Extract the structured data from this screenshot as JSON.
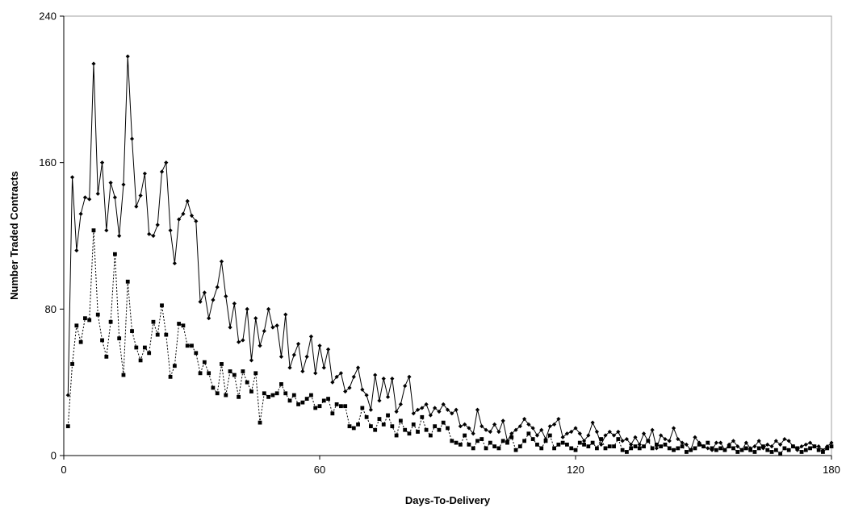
{
  "chart_data": {
    "type": "line",
    "title": "",
    "xlabel": "Days-To-Delivery",
    "ylabel": "Number Traded Contracts",
    "xlim": [
      0,
      180
    ],
    "ylim": [
      0,
      240
    ],
    "x_ticks": [
      "0",
      "60",
      "120",
      "180"
    ],
    "y_ticks": [
      "0",
      "80",
      "160",
      "240"
    ],
    "grid": false,
    "legend": "none",
    "series": [
      {
        "style": "solid",
        "marker": "diamond",
        "color": "#000000",
        "x": [
          1,
          2,
          3,
          4,
          5,
          6,
          7,
          8,
          9,
          10,
          11,
          12,
          13,
          14,
          15,
          16,
          17,
          18,
          19,
          20,
          21,
          22,
          23,
          24,
          25,
          26,
          27,
          28,
          29,
          30,
          31,
          32,
          33,
          34,
          35,
          36,
          37,
          38,
          39,
          40,
          41,
          42,
          43,
          44,
          45,
          46,
          47,
          48,
          49,
          50,
          51,
          52,
          53,
          54,
          55,
          56,
          57,
          58,
          59,
          60,
          61,
          62,
          63,
          64,
          65,
          66,
          67,
          68,
          69,
          70,
          71,
          72,
          73,
          74,
          75,
          76,
          77,
          78,
          79,
          80,
          81,
          82,
          83,
          84,
          85,
          86,
          87,
          88,
          89,
          90,
          91,
          92,
          93,
          94,
          95,
          96,
          97,
          98,
          99,
          100,
          101,
          102,
          103,
          104,
          105,
          106,
          107,
          108,
          109,
          110,
          111,
          112,
          113,
          114,
          115,
          116,
          117,
          118,
          119,
          120,
          121,
          122,
          123,
          124,
          125,
          126,
          127,
          128,
          129,
          130,
          131,
          132,
          133,
          134,
          135,
          136,
          137,
          138,
          139,
          140,
          141,
          142,
          143,
          144,
          145,
          146,
          147,
          148,
          149,
          150,
          151,
          152,
          153,
          154,
          155,
          156,
          157,
          158,
          159,
          160,
          161,
          162,
          163,
          164,
          165,
          166,
          167,
          168,
          169,
          170,
          171,
          172,
          173,
          174,
          175,
          176,
          177,
          178,
          179,
          180
        ],
        "values": [
          33,
          152,
          112,
          132,
          141,
          140,
          214,
          143,
          160,
          123,
          149,
          141,
          120,
          148,
          218,
          173,
          136,
          142,
          154,
          121,
          120,
          126,
          155,
          160,
          123,
          105,
          129,
          132,
          139,
          131,
          128,
          84,
          89,
          75,
          85,
          92,
          106,
          87,
          70,
          83,
          62,
          63,
          80,
          52,
          75,
          60,
          68,
          80,
          70,
          71,
          54,
          77,
          48,
          55,
          61,
          46,
          54,
          65,
          45,
          60,
          48,
          58,
          40,
          43,
          45,
          35,
          37,
          43,
          48,
          36,
          33,
          25,
          44,
          30,
          42,
          32,
          42,
          24,
          28,
          38,
          43,
          23,
          25,
          26,
          28,
          22,
          26,
          24,
          28,
          25,
          23,
          25,
          16,
          17,
          15,
          12,
          25,
          16,
          14,
          13,
          17,
          13,
          19,
          8,
          12,
          14,
          16,
          20,
          17,
          15,
          11,
          14,
          9,
          16,
          17,
          20,
          10,
          12,
          13,
          15,
          12,
          8,
          11,
          18,
          13,
          6,
          11,
          13,
          11,
          13,
          8,
          9,
          6,
          10,
          6,
          12,
          8,
          14,
          4,
          11,
          9,
          8,
          15,
          9,
          7,
          6,
          3,
          10,
          7,
          5,
          4,
          3,
          7,
          7,
          3,
          6,
          8,
          5,
          3,
          7,
          4,
          5,
          8,
          4,
          6,
          5,
          8,
          6,
          9,
          8,
          5,
          3,
          5,
          6,
          7,
          5,
          5,
          3,
          5,
          7
        ]
      },
      {
        "style": "dotted",
        "marker": "square",
        "color": "#000000",
        "x": [
          1,
          2,
          3,
          4,
          5,
          6,
          7,
          8,
          9,
          10,
          11,
          12,
          13,
          14,
          15,
          16,
          17,
          18,
          19,
          20,
          21,
          22,
          23,
          24,
          25,
          26,
          27,
          28,
          29,
          30,
          31,
          32,
          33,
          34,
          35,
          36,
          37,
          38,
          39,
          40,
          41,
          42,
          43,
          44,
          45,
          46,
          47,
          48,
          49,
          50,
          51,
          52,
          53,
          54,
          55,
          56,
          57,
          58,
          59,
          60,
          61,
          62,
          63,
          64,
          65,
          66,
          67,
          68,
          69,
          70,
          71,
          72,
          73,
          74,
          75,
          76,
          77,
          78,
          79,
          80,
          81,
          82,
          83,
          84,
          85,
          86,
          87,
          88,
          89,
          90,
          91,
          92,
          93,
          94,
          95,
          96,
          97,
          98,
          99,
          100,
          101,
          102,
          103,
          104,
          105,
          106,
          107,
          108,
          109,
          110,
          111,
          112,
          113,
          114,
          115,
          116,
          117,
          118,
          119,
          120,
          121,
          122,
          123,
          124,
          125,
          126,
          127,
          128,
          129,
          130,
          131,
          132,
          133,
          134,
          135,
          136,
          137,
          138,
          139,
          140,
          141,
          142,
          143,
          144,
          145,
          146,
          147,
          148,
          149,
          150,
          151,
          152,
          153,
          154,
          155,
          156,
          157,
          158,
          159,
          160,
          161,
          162,
          163,
          164,
          165,
          166,
          167,
          168,
          169,
          170,
          171,
          172,
          173,
          174,
          175,
          176,
          177,
          178,
          179,
          180
        ],
        "values": [
          16,
          50,
          71,
          62,
          75,
          74,
          123,
          77,
          63,
          54,
          73,
          110,
          64,
          44,
          95,
          68,
          59,
          52,
          59,
          56,
          73,
          66,
          82,
          66,
          43,
          49,
          72,
          71,
          60,
          60,
          56,
          45,
          51,
          45,
          37,
          34,
          50,
          33,
          46,
          44,
          32,
          46,
          40,
          35,
          45,
          18,
          34,
          32,
          33,
          34,
          39,
          34,
          30,
          33,
          28,
          29,
          31,
          33,
          26,
          27,
          30,
          31,
          23,
          28,
          27,
          27,
          16,
          15,
          17,
          26,
          21,
          16,
          14,
          20,
          17,
          22,
          16,
          11,
          19,
          14,
          12,
          17,
          13,
          21,
          14,
          11,
          16,
          14,
          18,
          15,
          8,
          7,
          6,
          11,
          6,
          4,
          8,
          9,
          4,
          7,
          5,
          4,
          8,
          7,
          10,
          3,
          5,
          8,
          12,
          9,
          6,
          4,
          8,
          11,
          4,
          6,
          7,
          6,
          4,
          3,
          7,
          6,
          5,
          7,
          4,
          9,
          4,
          5,
          5,
          9,
          3,
          2,
          4,
          5,
          4,
          5,
          8,
          4,
          6,
          5,
          6,
          4,
          3,
          4,
          5,
          2,
          3,
          4,
          6,
          5,
          7,
          4,
          3,
          4,
          3,
          5,
          4,
          2,
          3,
          4,
          3,
          2,
          4,
          5,
          3,
          2,
          3,
          1,
          4,
          3,
          5,
          4,
          2,
          3,
          4,
          5,
          3,
          2,
          4,
          5
        ]
      }
    ]
  }
}
